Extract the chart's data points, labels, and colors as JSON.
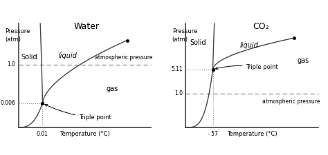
{
  "background_color": "#ffffff",
  "water": {
    "title": "Water",
    "xlabel": "Temperature (°C)",
    "ylabel_line1": "Pressure",
    "ylabel_line2": "(atm)",
    "triple_point_label": "Triple point",
    "tp_x_tick": "0.01",
    "tp_y_tick": "0.006",
    "atm_pressure_label": "atmospheric pressure",
    "atm_y_tick": "1.0",
    "solid_label": "Solid",
    "liquid_label": "liquid",
    "gas_label": "gas"
  },
  "co2": {
    "title": "CO₂",
    "xlabel": "Temperature (°C)",
    "ylabel_line1": "Pressure",
    "ylabel_line2": "(atm)",
    "triple_point_label": "Triple point",
    "tp_x_tick": "- 57",
    "tp_y_tick": "5.11",
    "atm_pressure_label": "atmospheric pressure",
    "atm_y_tick": "1.0",
    "solid_label": "Solid",
    "liquid_label": "liquid",
    "gas_label": "gas"
  },
  "fs_title": 9,
  "fs_label": 6,
  "fs_axis": 5.5,
  "fs_region": 7,
  "lc": "#444444",
  "gray": "#888888"
}
